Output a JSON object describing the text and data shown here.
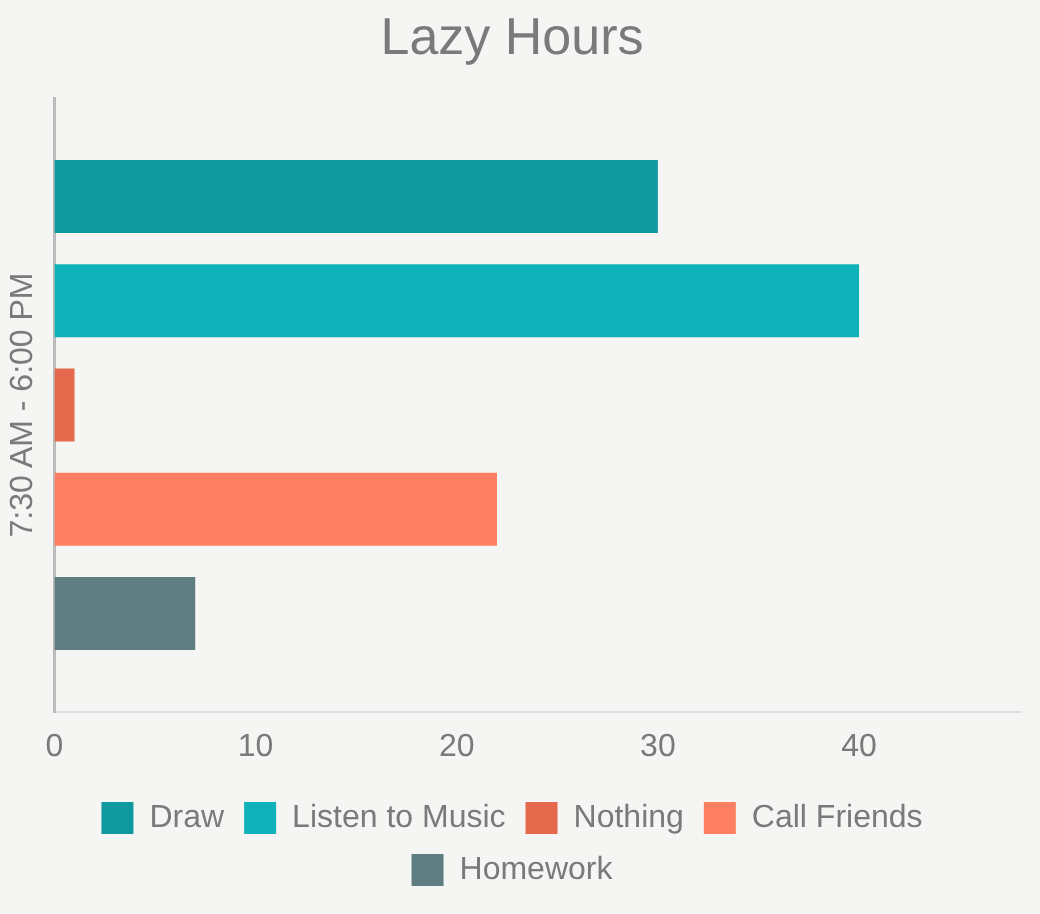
{
  "chart_data": {
    "type": "bar",
    "title": "Lazy Hours",
    "orientation": "horizontal",
    "categories": [
      null
    ],
    "ylabel": "7:30 AM - 6:00 PM",
    "series": [
      {
        "name": "Draw",
        "color": "#109a9f",
        "values": [
          30
        ]
      },
      {
        "name": "Listen to Music",
        "color": "#10b2b9",
        "values": [
          40
        ]
      },
      {
        "name": "Nothing",
        "color": "#e5694d",
        "values": [
          1
        ]
      },
      {
        "name": "Call Friends",
        "color": "#fd7f62",
        "values": [
          22
        ]
      },
      {
        "name": "Homework",
        "color": "#5f7e82",
        "values": [
          7
        ]
      }
    ],
    "xlim": [
      0,
      48
    ],
    "xticks": [
      0,
      10,
      20,
      30,
      40
    ],
    "grid": false,
    "legend": "bottom"
  }
}
